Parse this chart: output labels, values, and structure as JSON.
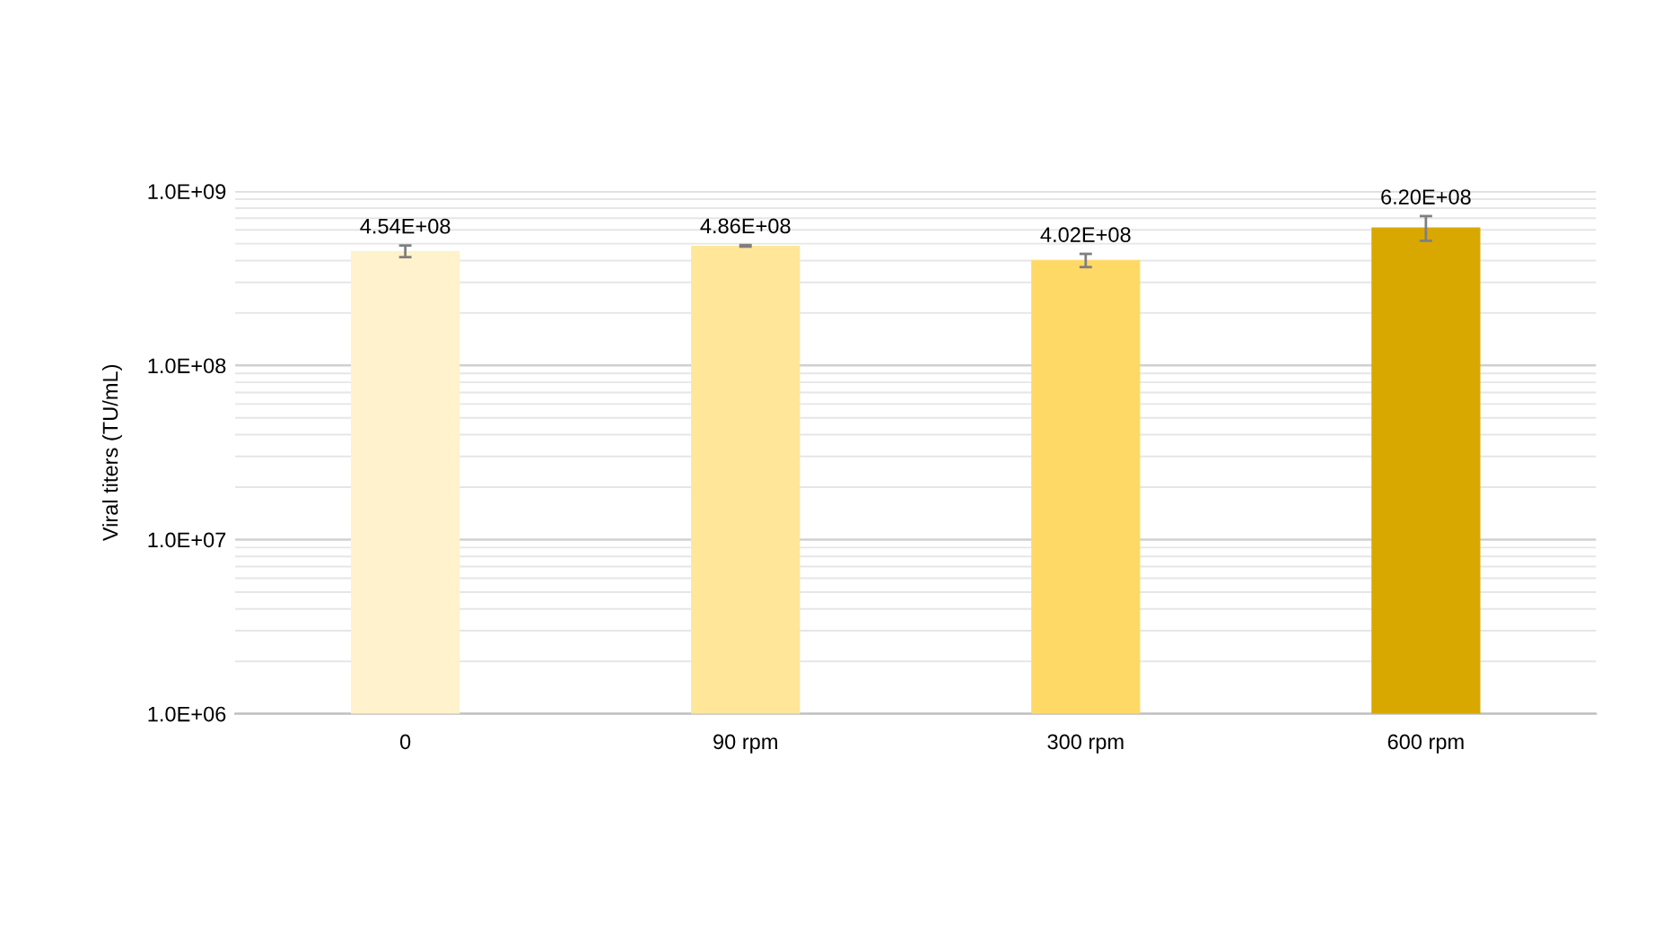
{
  "chart_data": {
    "type": "bar",
    "ylabel": "Viral titers (TU/mL)",
    "categories": [
      "0",
      "90 rpm",
      "300 rpm",
      "600 rpm"
    ],
    "values": [
      454000000,
      486000000,
      402000000,
      620000000
    ],
    "colors": [
      "#fff2cc",
      "#ffe699",
      "#ffd966",
      "#d9a800"
    ],
    "errors": [
      35000000,
      5000000,
      35000000,
      100000000
    ],
    "value_labels": [
      "4.54E+08",
      "4.86E+08",
      "4.02E+08",
      "6.20E+08"
    ],
    "log": true,
    "ylim": [
      1000000,
      1000000000
    ],
    "yticks": [
      {
        "value": 1000000,
        "label": "1.0E+06"
      },
      {
        "value": 10000000,
        "label": "1.0E+07"
      },
      {
        "value": 100000000,
        "label": "1.0E+08"
      },
      {
        "value": 1000000000,
        "label": "1.0E+09"
      }
    ],
    "grid": "y"
  }
}
